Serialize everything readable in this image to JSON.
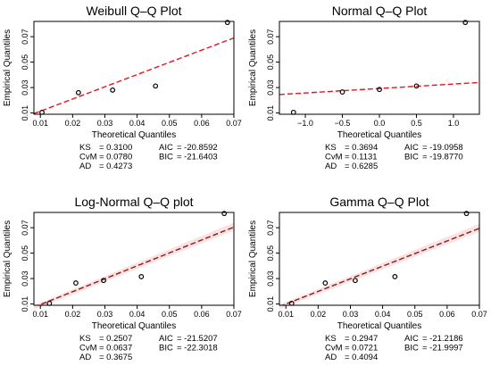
{
  "xlabel": "Theoretical Quantiles",
  "ylabel": "Empirical Quantiles",
  "colors": {
    "line": "#e8141c",
    "line_dark": "#8b1a1a",
    "band": "#f7d6d6",
    "points": "#000000"
  },
  "chart_data": [
    {
      "type": "scatter",
      "title": "Weibull Q–Q Plot",
      "xlim": [
        0.008,
        0.07
      ],
      "ylim": [
        0.009,
        0.082
      ],
      "xticks": [
        "0.01",
        "0.02",
        "0.03",
        "0.04",
        "0.05",
        "0.06",
        "0.07"
      ],
      "xtick_values": [
        0.01,
        0.02,
        0.03,
        0.04,
        0.05,
        0.06,
        0.07
      ],
      "yticks": [
        "0.01",
        "0.03",
        "0.05",
        "0.07"
      ],
      "ytick_values": [
        0.01,
        0.03,
        0.05,
        0.07
      ],
      "points": {
        "x": [
          0.0105,
          0.0218,
          0.0324,
          0.0457,
          0.068
        ],
        "y": [
          0.0105,
          0.026,
          0.028,
          0.0312,
          0.0812
        ]
      },
      "line": {
        "x": [
          0.008,
          0.07
        ],
        "y": [
          0.0095,
          0.069
        ]
      },
      "line_color": "line",
      "stats": [
        {
          "label": "KS",
          "value": "= 0.3100"
        },
        {
          "label": "CvM",
          "value": "= 0.0780"
        },
        {
          "label": "AD",
          "value": "= 0.4273"
        }
      ],
      "info": [
        {
          "label": "AIC",
          "value": "= -20.8592"
        },
        {
          "label": "BIC",
          "value": "= -21.6403"
        }
      ]
    },
    {
      "type": "scatter",
      "title": "Normal Q–Q Plot",
      "xlim": [
        -1.35,
        1.35
      ],
      "ylim": [
        0.009,
        0.082
      ],
      "xticks": [
        "−1.0",
        "−0.5",
        "0.0",
        "0.5",
        "1.0"
      ],
      "xtick_values": [
        -1.0,
        -0.5,
        0.0,
        0.5,
        1.0
      ],
      "yticks": [
        "0.01",
        "0.03",
        "0.05",
        "0.07"
      ],
      "ytick_values": [
        0.01,
        0.03,
        0.05,
        0.07
      ],
      "points": {
        "x": [
          -1.16,
          -0.5,
          0.0,
          0.5,
          1.16
        ],
        "y": [
          0.0105,
          0.0265,
          0.0285,
          0.0312,
          0.0812
        ]
      },
      "line": {
        "x": [
          -1.35,
          1.35
        ],
        "y": [
          0.0245,
          0.034
        ]
      },
      "line_color": "line",
      "stats": [
        {
          "label": "KS",
          "value": "= 0.3694"
        },
        {
          "label": "CvM",
          "value": "= 0.1131"
        },
        {
          "label": "AD",
          "value": "= 0.6285"
        }
      ],
      "info": [
        {
          "label": "AIC",
          "value": "= -19.0958"
        },
        {
          "label": "BIC",
          "value": "= -19.8770"
        }
      ]
    },
    {
      "type": "scatter",
      "title": "Log-Normal Q–Q plot",
      "xlim": [
        0.008,
        0.07
      ],
      "ylim": [
        0.009,
        0.082
      ],
      "xticks": [
        "0.01",
        "0.02",
        "0.03",
        "0.04",
        "0.05",
        "0.06",
        "0.07"
      ],
      "xtick_values": [
        0.01,
        0.02,
        0.03,
        0.04,
        0.05,
        0.06,
        0.07
      ],
      "yticks": [
        "0.01",
        "0.03",
        "0.05",
        "0.07"
      ],
      "ytick_values": [
        0.01,
        0.03,
        0.05,
        0.07
      ],
      "points": {
        "x": [
          0.0128,
          0.021,
          0.0296,
          0.0413,
          0.067
        ],
        "y": [
          0.0105,
          0.0265,
          0.0285,
          0.0315,
          0.0812
        ]
      },
      "line": {
        "x": [
          0.008,
          0.07
        ],
        "y": [
          0.0075,
          0.0705
        ]
      },
      "line_color": "line_dark",
      "band": true,
      "stats": [
        {
          "label": "KS",
          "value": "= 0.2507"
        },
        {
          "label": "CvM",
          "value": "= 0.0637"
        },
        {
          "label": "AD",
          "value": "= 0.3675"
        }
      ],
      "info": [
        {
          "label": "AIC",
          "value": "= -21.5207"
        },
        {
          "label": "BIC",
          "value": "= -22.3018"
        }
      ]
    },
    {
      "type": "scatter",
      "title": "Gamma Q–Q Plot",
      "xlim": [
        0.008,
        0.07
      ],
      "ylim": [
        0.009,
        0.082
      ],
      "xticks": [
        "0.01",
        "0.02",
        "0.03",
        "0.04",
        "0.05",
        "0.06",
        "0.07"
      ],
      "xtick_values": [
        0.01,
        0.02,
        0.03,
        0.04,
        0.05,
        0.06,
        0.07
      ],
      "yticks": [
        "0.01",
        "0.03",
        "0.05",
        "0.07"
      ],
      "ytick_values": [
        0.01,
        0.03,
        0.05,
        0.07
      ],
      "points": {
        "x": [
          0.0118,
          0.0222,
          0.0315,
          0.0438,
          0.066
        ],
        "y": [
          0.0105,
          0.0265,
          0.0285,
          0.0315,
          0.0812
        ]
      },
      "line": {
        "x": [
          0.008,
          0.07
        ],
        "y": [
          0.008,
          0.0695
        ]
      },
      "line_color": "line_dark",
      "band": true,
      "stats": [
        {
          "label": "KS",
          "value": "= 0.2947"
        },
        {
          "label": "CvM",
          "value": "= 0.0721"
        },
        {
          "label": "AD",
          "value": "= 0.4094"
        }
      ],
      "info": [
        {
          "label": "AIC",
          "value": "= -21.2186"
        },
        {
          "label": "BIC",
          "value": "= -21.9997"
        }
      ]
    }
  ]
}
